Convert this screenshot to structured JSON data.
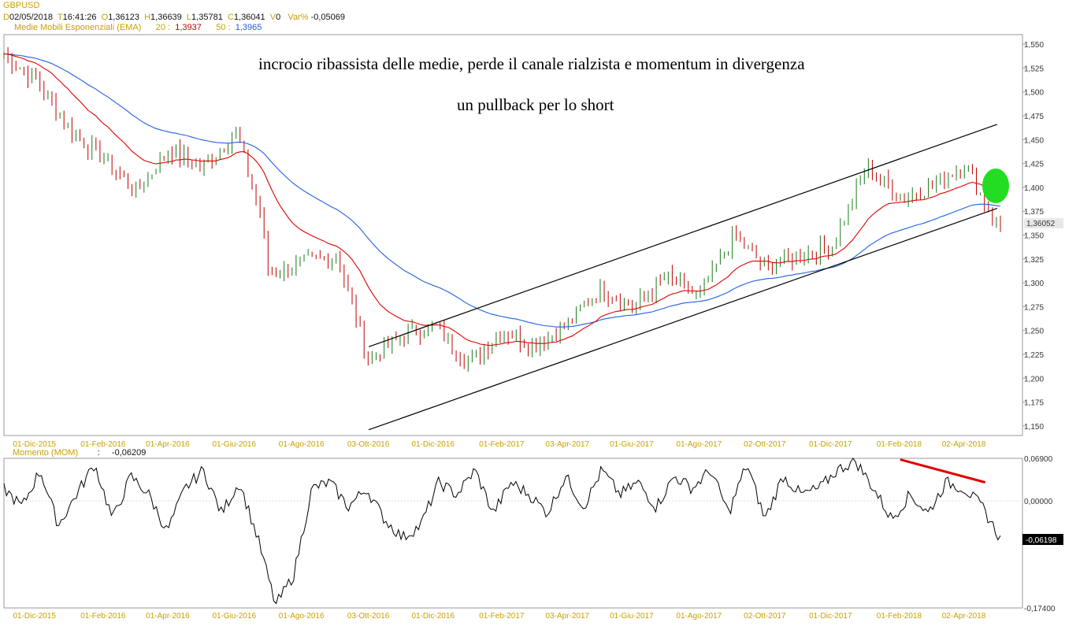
{
  "header": {
    "symbol": "GBPUSD",
    "d_label": "D",
    "date": "02/05/2018",
    "t_label": "T",
    "time": "16:41:26",
    "o_label": "O",
    "open": "1,36123",
    "h_label": "H",
    "high": "1,36639",
    "l_label": "L",
    "low": "1,35781",
    "c_label": "C",
    "close": "1,36041",
    "v_label": "V",
    "volume": "0",
    "var_label": "Var%",
    "var": "-0,05069",
    "ema_title": "Medie Mobili Esponenziali (EMA)",
    "ema20_label": "20 :",
    "ema20_value": "1,3937",
    "ema50_label": "50 :",
    "ema50_value": "1,3965",
    "mom_title": "Momento (MOM)",
    "mom_sep": ":",
    "mom_value": "-0,06209"
  },
  "annotations": {
    "line1": "incrocio ribassista delle medie, perde il canale rialzista e momentum in divergenza",
    "line2": "un pullback per lo short"
  },
  "colors": {
    "candle": "#c00000",
    "candle_up": "#1a7a1a",
    "ema20": "#e00000",
    "ema50": "#2060e0",
    "channel": "#000000",
    "circle": "#22dd22",
    "divergence": "#e00000",
    "date_label": "#c8a000"
  },
  "chart_data": [
    {
      "type": "candlestick",
      "title": "GBPUSD",
      "price_ticks": [
        "1,550",
        "1,525",
        "1,500",
        "1,475",
        "1,450",
        "1,425",
        "1,400",
        "1,375",
        "1,350",
        "1,325",
        "1,300",
        "1,275",
        "1,250",
        "1,225",
        "1,200",
        "1,175",
        "1,150"
      ],
      "ylim": [
        1.14,
        1.56
      ],
      "last_price_label": "1,36052",
      "date_ticks": [
        "01-Dic-2015",
        "01-Feb-2016",
        "01-Apr-2016",
        "01-Giu-2016",
        "01-Ago-2016",
        "03-Ott-2016",
        "01-Dic-2016",
        "01-Feb-2017",
        "03-Apr-2017",
        "01-Giu-2017",
        "01-Ago-2017",
        "02-Ott-2017",
        "01-Dic-2017",
        "01-Feb-2018",
        "02-Apr-2018"
      ],
      "close_series": [
        {
          "date": "2015-11",
          "value": 1.54
        },
        {
          "date": "2015-12",
          "value": 1.512
        },
        {
          "date": "2016-01",
          "value": 1.46
        },
        {
          "date": "2016-02",
          "value": 1.43
        },
        {
          "date": "2016-03",
          "value": 1.395
        },
        {
          "date": "2016-04",
          "value": 1.44
        },
        {
          "date": "2016-05",
          "value": 1.42
        },
        {
          "date": "2016-06",
          "value": 1.46
        },
        {
          "date": "2016-06-24",
          "value": 1.37
        },
        {
          "date": "2016-07",
          "value": 1.31
        },
        {
          "date": "2016-08",
          "value": 1.32
        },
        {
          "date": "2016-09",
          "value": 1.33
        },
        {
          "date": "2016-10",
          "value": 1.22
        },
        {
          "date": "2016-11",
          "value": 1.245
        },
        {
          "date": "2016-12",
          "value": 1.255
        },
        {
          "date": "2017-01",
          "value": 1.215
        },
        {
          "date": "2017-02",
          "value": 1.25
        },
        {
          "date": "2017-03",
          "value": 1.235
        },
        {
          "date": "2017-04",
          "value": 1.255
        },
        {
          "date": "2017-05",
          "value": 1.295
        },
        {
          "date": "2017-06",
          "value": 1.275
        },
        {
          "date": "2017-07",
          "value": 1.305
        },
        {
          "date": "2017-08",
          "value": 1.285
        },
        {
          "date": "2017-09",
          "value": 1.35
        },
        {
          "date": "2017-10",
          "value": 1.315
        },
        {
          "date": "2017-11",
          "value": 1.33
        },
        {
          "date": "2017-12",
          "value": 1.34
        },
        {
          "date": "2018-01",
          "value": 1.42
        },
        {
          "date": "2018-02",
          "value": 1.39
        },
        {
          "date": "2018-03",
          "value": 1.4
        },
        {
          "date": "2018-04",
          "value": 1.425
        },
        {
          "date": "2018-05",
          "value": 1.361
        }
      ],
      "ema20_last": 1.3937,
      "ema50_last": 1.3965,
      "channel": {
        "upper": [
          {
            "date": "2016-10",
            "value": 1.233
          },
          {
            "date": "2018-05",
            "value": 1.466
          }
        ],
        "lower": [
          {
            "date": "2016-10",
            "value": 1.146
          },
          {
            "date": "2018-05",
            "value": 1.378
          }
        ]
      }
    },
    {
      "type": "line",
      "title": "Momento (MOM)",
      "value_ticks": [
        "0,06900",
        "0,00000",
        "-0,17400"
      ],
      "ylim": [
        -0.174,
        0.069
      ],
      "last_value_label": "-0,06198",
      "series": [
        {
          "values": [
            0.02,
            -0.01,
            0.05,
            -0.04,
            0.01,
            0.06,
            -0.03,
            0.04,
            0.01,
            -0.05,
            0.02,
            0.05,
            -0.02,
            0.03,
            -0.06,
            -0.17,
            -0.12,
            0.02,
            0.03,
            -0.01,
            0.02,
            -0.03,
            -0.06,
            -0.04,
            0.03,
            0.01,
            0.05,
            -0.02,
            0.03,
            0.01,
            -0.02,
            0.04,
            -0.01,
            0.05,
            0.01,
            0.03,
            -0.01,
            0.04,
            0.02,
            0.05,
            -0.02,
            0.06,
            -0.03,
            0.04,
            0.01,
            0.02,
            0.05,
            0.065,
            0.02,
            -0.03,
            0.01,
            -0.02,
            0.03,
            0.02,
            -0.01,
            -0.062
          ]
        }
      ],
      "divergence_line": [
        {
          "date": "2018-02",
          "value": 0.067
        },
        {
          "date": "2018-04-20",
          "value": 0.03
        }
      ]
    }
  ]
}
